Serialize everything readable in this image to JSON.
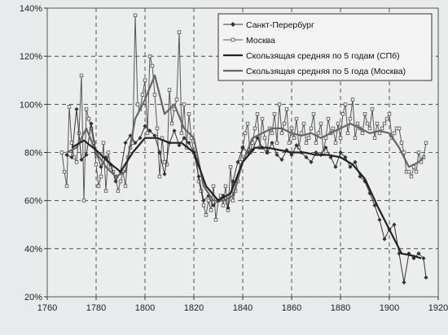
{
  "chart_data": {
    "type": "line",
    "title": "",
    "xlabel": "",
    "ylabel": "",
    "xlim": [
      1760,
      1920
    ],
    "ylim": [
      20,
      140
    ],
    "x_ticks": [
      1760,
      1780,
      1800,
      1820,
      1840,
      1860,
      1880,
      1900,
      1920
    ],
    "y_ticks": [
      20,
      40,
      60,
      80,
      100,
      120,
      140
    ],
    "x_tick_labels": [
      "1760",
      "1780",
      "1800",
      "1820",
      "1840",
      "1860",
      "1880",
      "1900",
      "1920"
    ],
    "y_tick_labels": [
      "20%",
      "40%",
      "60%",
      "80%",
      "100%",
      "120%",
      "140%"
    ],
    "grid": true,
    "legend_position": "top-right",
    "series": [
      {
        "name": "Санкт-Перербург",
        "style": "line-diamond",
        "color": "#333333",
        "x": [
          1768,
          1770,
          1772,
          1774,
          1776,
          1778,
          1780,
          1782,
          1784,
          1786,
          1788,
          1790,
          1792,
          1794,
          1796,
          1798,
          1800,
          1802,
          1804,
          1806,
          1808,
          1810,
          1812,
          1814,
          1816,
          1818,
          1820,
          1822,
          1824,
          1826,
          1828,
          1830,
          1832,
          1834,
          1836,
          1838,
          1840,
          1842,
          1844,
          1846,
          1848,
          1850,
          1852,
          1854,
          1856,
          1858,
          1860,
          1862,
          1864,
          1866,
          1868,
          1870,
          1872,
          1874,
          1876,
          1878,
          1880,
          1882,
          1884,
          1886,
          1888,
          1890,
          1892,
          1894,
          1896,
          1898,
          1900,
          1902,
          1904,
          1906,
          1908,
          1910,
          1912,
          1914,
          1915
        ],
        "y": [
          79,
          78,
          98,
          77,
          79,
          92,
          80,
          74,
          78,
          75,
          68,
          72,
          84,
          87,
          84,
          86,
          91,
          89,
          87,
          80,
          71,
          84,
          89,
          83,
          86,
          84,
          80,
          70,
          60,
          62,
          58,
          60,
          62,
          57,
          68,
          76,
          82,
          80,
          81,
          86,
          82,
          80,
          84,
          79,
          77,
          81,
          79,
          83,
          80,
          78,
          76,
          80,
          79,
          82,
          78,
          74,
          80,
          78,
          74,
          76,
          70,
          68,
          63,
          58,
          52,
          44,
          48,
          50,
          38,
          26,
          38,
          36,
          38,
          36,
          28
        ]
      },
      {
        "name": "Москва",
        "style": "line-square",
        "color": "#555555",
        "x": [
          1766,
          1767,
          1768,
          1769,
          1770,
          1771,
          1772,
          1773,
          1774,
          1775,
          1776,
          1777,
          1778,
          1779,
          1780,
          1781,
          1782,
          1783,
          1784,
          1785,
          1786,
          1787,
          1788,
          1789,
          1790,
          1791,
          1792,
          1793,
          1794,
          1795,
          1796,
          1797,
          1798,
          1799,
          1800,
          1801,
          1802,
          1803,
          1804,
          1805,
          1806,
          1807,
          1808,
          1809,
          1810,
          1811,
          1812,
          1813,
          1814,
          1815,
          1816,
          1817,
          1818,
          1819,
          1820,
          1821,
          1822,
          1823,
          1824,
          1825,
          1826,
          1827,
          1828,
          1829,
          1830,
          1831,
          1832,
          1833,
          1834,
          1835,
          1836,
          1837,
          1838,
          1839,
          1840,
          1841,
          1842,
          1843,
          1844,
          1845,
          1846,
          1847,
          1848,
          1849,
          1850,
          1851,
          1852,
          1853,
          1854,
          1855,
          1856,
          1857,
          1858,
          1859,
          1860,
          1861,
          1862,
          1863,
          1864,
          1865,
          1866,
          1867,
          1868,
          1869,
          1870,
          1871,
          1872,
          1873,
          1874,
          1875,
          1876,
          1877,
          1878,
          1879,
          1880,
          1881,
          1882,
          1883,
          1884,
          1885,
          1886,
          1887,
          1888,
          1889,
          1890,
          1891,
          1892,
          1893,
          1894,
          1895,
          1896,
          1897,
          1898,
          1899,
          1900,
          1901,
          1902,
          1903,
          1904,
          1905,
          1906,
          1907,
          1908,
          1909,
          1910,
          1911,
          1912,
          1913,
          1914,
          1915
        ],
        "y": [
          80,
          72,
          66,
          99,
          84,
          78,
          76,
          88,
          112,
          60,
          98,
          94,
          90,
          84,
          75,
          66,
          70,
          84,
          64,
          80,
          74,
          72,
          70,
          64,
          68,
          72,
          66,
          78,
          82,
          84,
          137,
          100,
          98,
          104,
          110,
          88,
          120,
          116,
          104,
          90,
          70,
          86,
          76,
          75,
          106,
          92,
          98,
          102,
          130,
          88,
          100,
          82,
          96,
          86,
          80,
          78,
          68,
          64,
          58,
          54,
          60,
          56,
          66,
          52,
          60,
          62,
          58,
          66,
          56,
          74,
          60,
          64,
          68,
          76,
          82,
          88,
          92,
          80,
          84,
          90,
          96,
          82,
          94,
          86,
          80,
          90,
          88,
          96,
          84,
          100,
          88,
          92,
          98,
          84,
          90,
          86,
          94,
          82,
          88,
          92,
          84,
          86,
          90,
          96,
          84,
          88,
          92,
          80,
          86,
          94,
          88,
          90,
          84,
          92,
          86,
          96,
          100,
          88,
          94,
          102,
          86,
          92,
          90,
          88,
          96,
          92,
          90,
          98,
          86,
          92,
          88,
          90,
          92,
          94,
          96,
          86,
          88,
          90,
          90,
          84,
          80,
          72,
          72,
          70,
          74,
          72,
          80,
          76,
          78,
          84
        ]
      },
      {
        "name": "Скользящая средняя по 5 годам (СПб)",
        "style": "line",
        "color": "#222222",
        "x": [
          1770,
          1775,
          1780,
          1785,
          1790,
          1795,
          1800,
          1805,
          1810,
          1815,
          1820,
          1825,
          1830,
          1835,
          1840,
          1845,
          1850,
          1855,
          1860,
          1865,
          1870,
          1875,
          1880,
          1885,
          1890,
          1895,
          1900,
          1905,
          1910,
          1913
        ],
        "y": [
          82,
          85,
          81,
          76,
          72,
          80,
          86,
          86,
          84,
          84,
          80,
          66,
          60,
          63,
          76,
          82,
          82,
          81,
          80,
          80,
          79,
          79,
          78,
          75,
          69,
          58,
          48,
          38,
          37,
          36
        ]
      },
      {
        "name": "Скользящая средняя по 5 года (Москва)",
        "style": "line",
        "color": "#666666",
        "x": [
          1768,
          1772,
          1776,
          1780,
          1784,
          1788,
          1792,
          1796,
          1800,
          1804,
          1808,
          1812,
          1816,
          1820,
          1824,
          1828,
          1832,
          1836,
          1840,
          1844,
          1848,
          1852,
          1856,
          1860,
          1864,
          1868,
          1872,
          1876,
          1880,
          1884,
          1888,
          1892,
          1896,
          1900,
          1904,
          1908,
          1912,
          1914
        ],
        "y": [
          80,
          82,
          90,
          80,
          74,
          70,
          72,
          94,
          102,
          112,
          96,
          100,
          90,
          86,
          66,
          60,
          60,
          62,
          76,
          86,
          88,
          90,
          90,
          88,
          87,
          88,
          86,
          88,
          90,
          92,
          90,
          88,
          89,
          88,
          82,
          74,
          76,
          78
        ]
      }
    ]
  }
}
